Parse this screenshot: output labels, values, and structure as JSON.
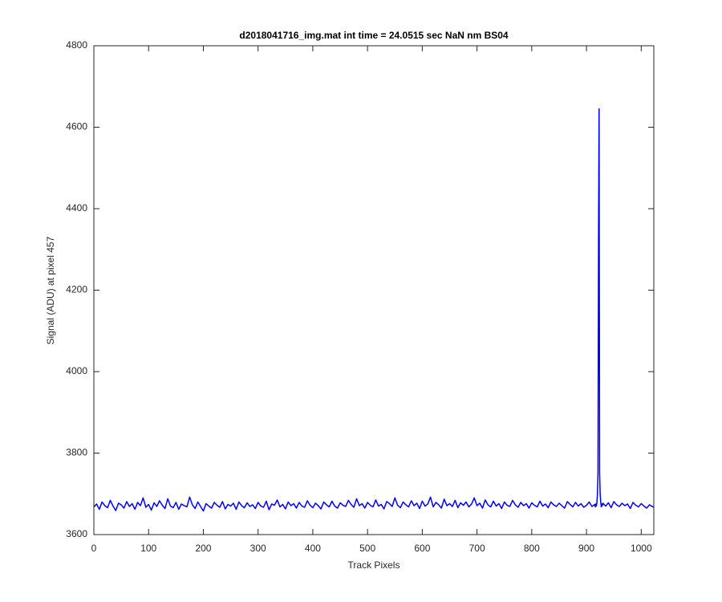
{
  "chart_data": {
    "type": "line",
    "title": "d2018041716_img.mat int time = 24.0515 sec  NaN nm BS04",
    "x_label": "Track Pixels",
    "y_label": "Signal (ADU) at pixel 457",
    "color": "#0000ff",
    "xlim": [
      0,
      1023
    ],
    "xticks": [
      0,
      100,
      200,
      300,
      400,
      500,
      600,
      700,
      800,
      900,
      1000
    ],
    "ylim": [
      3600,
      4800
    ],
    "yticks": [
      3600,
      3800,
      4000,
      4200,
      4400,
      4600,
      4800
    ],
    "x": [
      0,
      5,
      10,
      15,
      20,
      25,
      30,
      35,
      40,
      45,
      50,
      55,
      60,
      65,
      70,
      75,
      80,
      85,
      90,
      95,
      100,
      105,
      110,
      115,
      120,
      125,
      130,
      135,
      140,
      145,
      150,
      155,
      160,
      165,
      170,
      175,
      180,
      185,
      190,
      195,
      200,
      205,
      210,
      215,
      220,
      225,
      230,
      235,
      240,
      245,
      250,
      255,
      260,
      265,
      270,
      275,
      280,
      285,
      290,
      295,
      300,
      305,
      310,
      315,
      320,
      325,
      330,
      335,
      340,
      345,
      350,
      355,
      360,
      365,
      370,
      375,
      380,
      385,
      390,
      395,
      400,
      405,
      410,
      415,
      420,
      425,
      430,
      435,
      440,
      445,
      450,
      455,
      460,
      465,
      470,
      475,
      480,
      485,
      490,
      495,
      500,
      505,
      510,
      515,
      520,
      525,
      530,
      535,
      540,
      545,
      550,
      555,
      560,
      565,
      570,
      575,
      580,
      585,
      590,
      595,
      600,
      605,
      610,
      615,
      620,
      625,
      630,
      635,
      640,
      645,
      650,
      655,
      660,
      665,
      670,
      675,
      680,
      685,
      690,
      695,
      700,
      705,
      710,
      715,
      720,
      725,
      730,
      735,
      740,
      745,
      750,
      755,
      760,
      765,
      770,
      775,
      780,
      785,
      790,
      795,
      800,
      805,
      810,
      815,
      820,
      825,
      830,
      835,
      840,
      845,
      850,
      855,
      860,
      865,
      870,
      875,
      880,
      885,
      890,
      895,
      900,
      905,
      910,
      915,
      916,
      917,
      918,
      919,
      920,
      921,
      922,
      923,
      924,
      925,
      926,
      927,
      928,
      929,
      930,
      935,
      940,
      945,
      950,
      955,
      960,
      965,
      970,
      975,
      980,
      985,
      990,
      995,
      1000,
      1005,
      1010,
      1015,
      1020,
      1023
    ],
    "values": [
      3668,
      3675,
      3662,
      3680,
      3671,
      3666,
      3684,
      3670,
      3659,
      3677,
      3673,
      3665,
      3681,
      3669,
      3676,
      3662,
      3679,
      3671,
      3690,
      3667,
      3674,
      3660,
      3678,
      3669,
      3683,
      3672,
      3664,
      3688,
      3670,
      3666,
      3679,
      3662,
      3675,
      3671,
      3668,
      3692,
      3673,
      3664,
      3680,
      3669,
      3658,
      3676,
      3670,
      3665,
      3679,
      3672,
      3667,
      3681,
      3663,
      3674,
      3670,
      3677,
      3662,
      3680,
      3671,
      3666,
      3678,
      3669,
      3673,
      3664,
      3679,
      3670,
      3667,
      3682,
      3661,
      3675,
      3672,
      3685,
      3668,
      3674,
      3663,
      3680,
      3671,
      3676,
      3665,
      3679,
      3670,
      3667,
      3683,
      3672,
      3666,
      3677,
      3671,
      3663,
      3680,
      3673,
      3668,
      3682,
      3670,
      3665,
      3678,
      3672,
      3669,
      3684,
      3674,
      3667,
      3688,
      3671,
      3676,
      3665,
      3679,
      3672,
      3668,
      3685,
      3670,
      3674,
      3663,
      3681,
      3676,
      3669,
      3690,
      3672,
      3666,
      3680,
      3673,
      3668,
      3683,
      3671,
      3677,
      3664,
      3682,
      3670,
      3675,
      3692,
      3668,
      3679,
      3673,
      3665,
      3687,
      3671,
      3676,
      3669,
      3684,
      3666,
      3678,
      3672,
      3680,
      3668,
      3675,
      3690,
      3671,
      3677,
      3665,
      3685,
      3673,
      3668,
      3682,
      3670,
      3676,
      3664,
      3680,
      3672,
      3669,
      3684,
      3673,
      3667,
      3679,
      3671,
      3676,
      3665,
      3678,
      3672,
      3668,
      3682,
      3670,
      3675,
      3666,
      3680,
      3673,
      3669,
      3677,
      3671,
      3665,
      3681,
      3674,
      3668,
      3679,
      3670,
      3676,
      3667,
      3672,
      3680,
      3669,
      3674,
      3668,
      3675,
      3670,
      3678,
      3700,
      3750,
      4330,
      4645,
      3750,
      3700,
      3680,
      3668,
      3675,
      3671,
      3677,
      3670,
      3678,
      3666,
      3681,
      3673,
      3669,
      3677,
      3671,
      3675,
      3664,
      3679,
      3672,
      3668,
      3676,
      3670,
      3665,
      3673,
      3669,
      3667
    ]
  }
}
